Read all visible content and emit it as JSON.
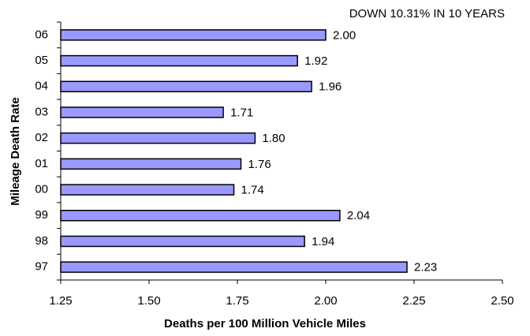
{
  "chart_data": {
    "type": "bar",
    "orientation": "horizontal",
    "annotation": "DOWN 10.31% IN 10 YEARS",
    "x_label": "Deaths per 100 Million Vehicle Miles",
    "y_label": "Mileage Death Rate",
    "categories": [
      "06",
      "05",
      "04",
      "03",
      "02",
      "01",
      "00",
      "99",
      "98",
      "97"
    ],
    "values": [
      2.0,
      1.92,
      1.96,
      1.71,
      1.8,
      1.76,
      1.74,
      2.04,
      1.94,
      2.23
    ],
    "value_labels": [
      "2.00",
      "1.92",
      "1.96",
      "1.71",
      "1.80",
      "1.76",
      "1.74",
      "2.04",
      "1.94",
      "2.23"
    ],
    "color": "#9999ff",
    "xlim": [
      1.25,
      2.5
    ],
    "xticks": [
      1.25,
      {
        "value": 1.5,
        "label": "1.50"
      },
      1.75,
      {
        "value": 2,
        "label": "2.00"
      },
      2.25,
      {
        "value": 2.5,
        "label": "2.50"
      }
    ],
    "grid": false
  }
}
